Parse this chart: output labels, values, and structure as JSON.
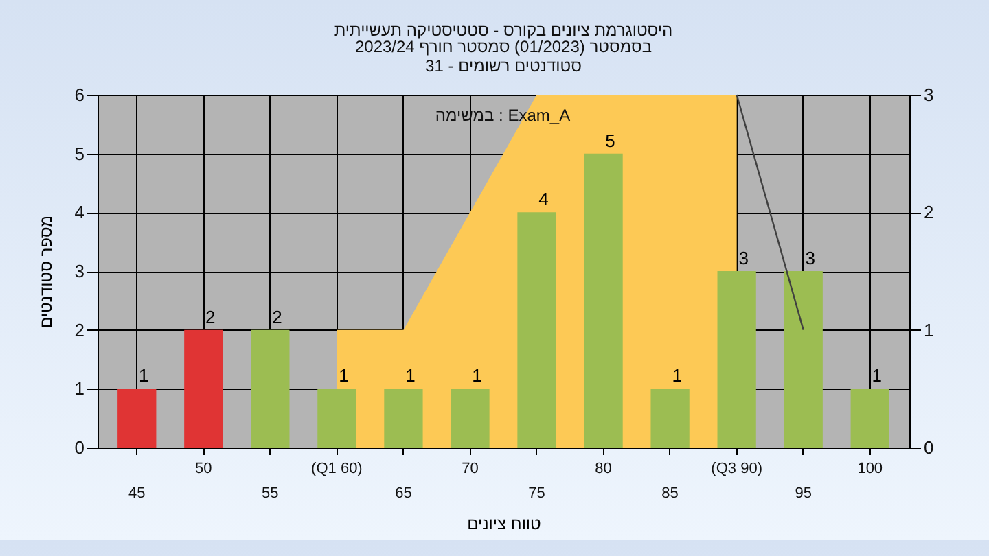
{
  "chart_data": {
    "type": "bar",
    "title": "היסטוגרמת ציונים בקורס - סטטיסטיקה תעשייתית",
    "subtitle": "בסמסטר  (01/2023)  סמסטר חורף  2023/24\nסטודנטים רשומים - 31",
    "xlabel": "טווח ציונים",
    "ylabel": "מספר סטודנטים",
    "annotations": [
      "במשימה : Exam_A"
    ],
    "categories": [
      "45",
      "50",
      "55",
      "(Q1 60)",
      "65",
      "70",
      "75",
      "80",
      "85",
      "(Q3 90)",
      "95",
      "100"
    ],
    "series": [
      {
        "type": "area",
        "axis": "y2",
        "color": "#fdc955",
        "values": [
          null,
          null,
          null,
          1,
          1,
          2,
          3,
          3,
          3,
          3,
          null,
          null
        ]
      },
      {
        "value_labels": [
          "1",
          "2",
          "2",
          "1",
          "1",
          "1",
          "4",
          "5",
          "1",
          "3",
          "3",
          "1"
        ],
        "colors": [
          "#e03434",
          "#e03434",
          "#9cbd52",
          "#9cbd52",
          "#9cbd52",
          "#9cbd52",
          "#9cbd52",
          "#9cbd52",
          "#9cbd52",
          "#9cbd52",
          "#9cbd52",
          "#9cbd52"
        ],
        "values": [
          1,
          2,
          2,
          1,
          1,
          1,
          4,
          5,
          1,
          3,
          3,
          1
        ]
      },
      {
        "type": "line",
        "axis": "y2",
        "color": "#404040",
        "values": [
          null,
          null,
          null,
          null,
          null,
          null,
          null,
          null,
          null,
          3,
          1,
          null
        ]
      }
    ],
    "ylim": [
      0,
      6
    ],
    "yticks": [
      0,
      1,
      2,
      3,
      4,
      5,
      6
    ],
    "y2lim": [
      0,
      3
    ],
    "y2ticks": [
      0,
      1,
      2,
      3
    ],
    "grid": true
  }
}
